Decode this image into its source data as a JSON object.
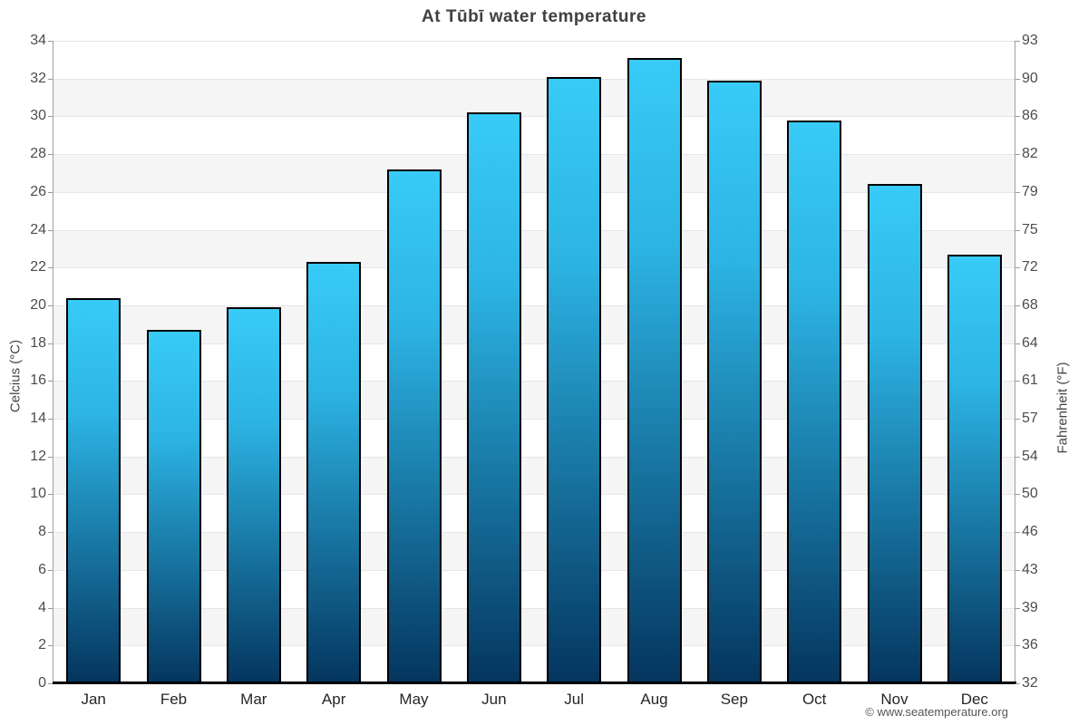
{
  "page": {
    "copyright": "© www.seatemperature.org"
  },
  "chart_data": {
    "type": "bar",
    "title": "At Tūbī water temperature",
    "categories": [
      "Jan",
      "Feb",
      "Mar",
      "Apr",
      "May",
      "Jun",
      "Jul",
      "Aug",
      "Sep",
      "Oct",
      "Nov",
      "Dec"
    ],
    "values": [
      20.4,
      18.7,
      19.9,
      22.3,
      27.2,
      30.2,
      32.1,
      33.1,
      31.9,
      29.8,
      26.4,
      22.7
    ],
    "xlabel": "",
    "ylabel_left": "Celcius (°C)",
    "ylabel_right": "Fahrenheit (°F)",
    "ylim": [
      0,
      34
    ],
    "y_left_ticks": [
      34,
      32,
      30,
      28,
      26,
      24,
      22,
      20,
      18,
      16,
      14,
      12,
      10,
      8,
      6,
      4,
      2,
      0
    ],
    "y_right_ticks": [
      "93",
      "90",
      "86",
      "82",
      "79",
      "75",
      "72",
      "68",
      "64",
      "61",
      "57",
      "54",
      "50",
      "46",
      "43",
      "39",
      "36",
      "32"
    ],
    "grid": "horizontal alternating bands",
    "legend": "none",
    "colors": {
      "bar_gradient_top": "#38cbf8",
      "bar_gradient_mid": "#2cb4e4",
      "bar_gradient_bottom": "#04355e",
      "bar_border": "#000000",
      "band_gray": "#f5f5f5",
      "band_white": "#ffffff",
      "gridline": "#e6e6e6",
      "axis_line": "#a0a0a0",
      "baseline": "#000000",
      "title_text": "#404040",
      "tick_text": "#4d4d4d",
      "month_text": "#262626",
      "copyright_text": "#555555"
    }
  }
}
